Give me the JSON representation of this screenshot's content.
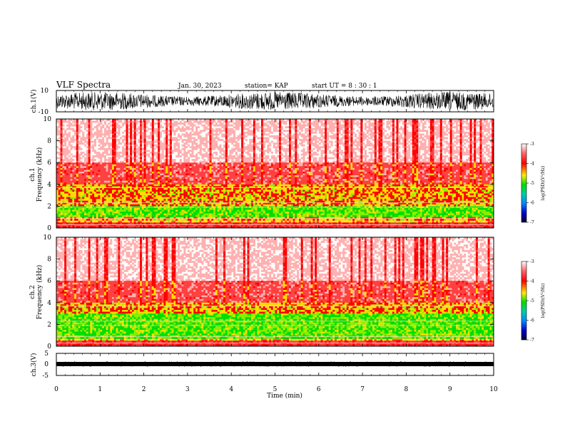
{
  "header": {
    "title": "VLF Spectra",
    "date": "Jan. 30, 2023",
    "station": "station= KAP",
    "start": "start  UT  =   8  : 30 : 1"
  },
  "colors": {
    "spectrum_low": "#00cc00",
    "spectrum_mid": "#ffee00",
    "spectrum_high": "#ff0000",
    "background": "#ffffff",
    "trace": "#000000"
  },
  "chart_data": [
    {
      "type": "line",
      "id": "ch1",
      "ylabel": "ch.1(V)",
      "ylim": [
        -10,
        10
      ],
      "yticks": [
        "10",
        "-10"
      ],
      "xlim": [
        0,
        10
      ],
      "description_value": "dense oscillating waveform spanning roughly -8 to 8 V"
    },
    {
      "type": "heatmap",
      "id": "spec1",
      "ylabel": "ch.1\nFrequency (kHz)",
      "ylim": [
        0,
        10
      ],
      "yticks": [
        "0",
        "2",
        "4",
        "6",
        "8",
        "10"
      ],
      "xlim": [
        0,
        10
      ],
      "colorbar": {
        "label": "log(PSD)(V²/Hz)",
        "range": [
          -7,
          -3
        ],
        "ticks": [
          "-3",
          "-4",
          "-5",
          "-6",
          "-7"
        ]
      }
    },
    {
      "type": "heatmap",
      "id": "spec2",
      "ylabel": "ch.2\nFrequency (kHz)",
      "ylim": [
        0,
        10
      ],
      "yticks": [
        "0",
        "2",
        "4",
        "6",
        "8",
        "10"
      ],
      "xlim": [
        0,
        10
      ],
      "colorbar": {
        "label": "log(PSD)(V²/Hz)",
        "range": [
          -7,
          -3
        ],
        "ticks": [
          "-3",
          "-4",
          "-5",
          "-6",
          "-7"
        ]
      }
    },
    {
      "type": "line",
      "id": "ch3",
      "ylabel": "ch.3(V)",
      "ylim": [
        -5,
        5
      ],
      "yticks": [
        "5",
        "0",
        "-5"
      ],
      "xlim": [
        0,
        10
      ],
      "xlabel": "Time (min)",
      "xticks": [
        "0",
        "1",
        "2",
        "3",
        "4",
        "5",
        "6",
        "7",
        "8",
        "9",
        "10"
      ]
    }
  ],
  "labels": {
    "ch1_ylabel": "ch.1(V)",
    "spec1_ylabel_a": "ch.1",
    "spec1_ylabel_b": "Frequency (kHz)",
    "spec2_ylabel_a": "ch.2",
    "spec2_ylabel_b": "Frequency (kHz)",
    "ch3_ylabel": "ch.3(V)",
    "xlabel": "Time (min)",
    "cb1_label": "log(PSD)(V²/Hz)",
    "cb2_label": "log(PSD)(V²/Hz)"
  }
}
